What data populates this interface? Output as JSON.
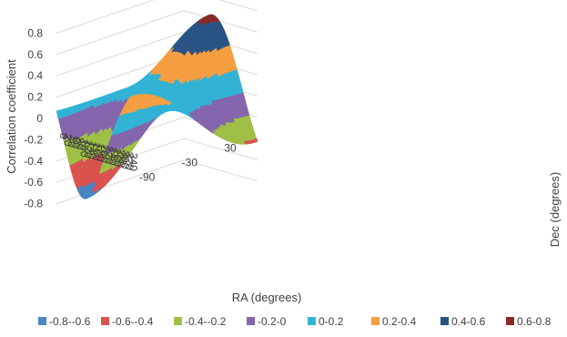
{
  "chart_data": {
    "type": "surface",
    "title": "",
    "xlabel": "RA (degrees)",
    "ylabel": "Dec (degrees)",
    "zlabel": "Correlation coefficient",
    "x_ticks": [
      "0",
      "20",
      "40",
      "60",
      "80",
      "100",
      "120",
      "140",
      "160",
      "180",
      "200",
      "220",
      "240",
      "260",
      "280",
      "300",
      "320",
      "340"
    ],
    "y_ticks": [
      "-90",
      "-30",
      "30"
    ],
    "z_ticks": [
      "-0.8",
      "-0.6",
      "-0.4",
      "-0.2",
      "0",
      "0.2",
      "0.4",
      "0.6",
      "0.8"
    ],
    "zlim": [
      -0.8,
      0.8
    ],
    "legend_position": "bottom",
    "bands": [
      {
        "name": "-0.8--0.6",
        "min": -0.8,
        "max": -0.6,
        "color": "#4a86c5"
      },
      {
        "name": "-0.6--0.4",
        "min": -0.6,
        "max": -0.4,
        "color": "#d9534f"
      },
      {
        "name": "-0.4--0.2",
        "min": -0.4,
        "max": -0.2,
        "color": "#9fc046"
      },
      {
        "name": "-0.2-0",
        "min": -0.2,
        "max": 0.0,
        "color": "#8566ad"
      },
      {
        "name": "0-0.2",
        "min": 0.0,
        "max": 0.2,
        "color": "#32b3d4"
      },
      {
        "name": "0.2-0.4",
        "min": 0.2,
        "max": 0.4,
        "color": "#f59e42"
      },
      {
        "name": "0.4-0.6",
        "min": 0.4,
        "max": 0.6,
        "color": "#2a5485"
      },
      {
        "name": "0.6-0.8",
        "min": 0.6,
        "max": 0.8,
        "color": "#8b2a2a"
      }
    ]
  }
}
